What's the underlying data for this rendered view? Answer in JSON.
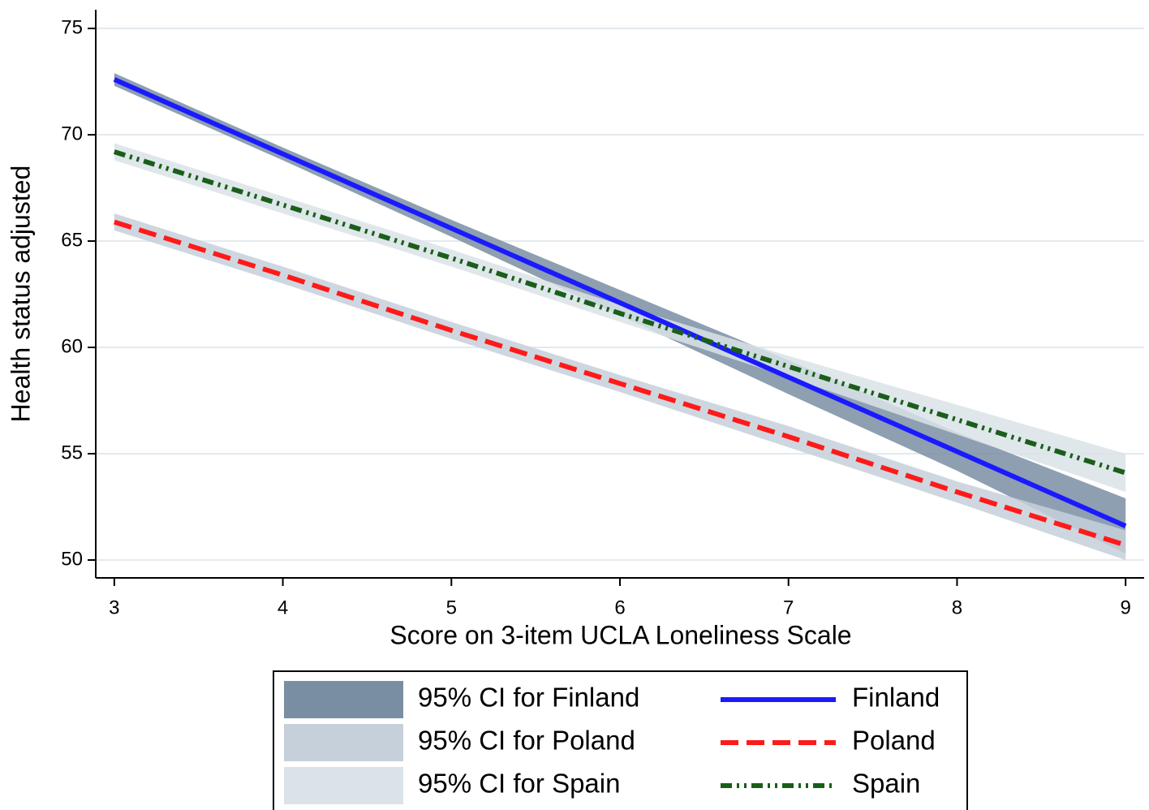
{
  "chart_data": {
    "type": "line",
    "x_label": "Score on 3-item UCLA Loneliness Scale",
    "y_label": "Health status adjusted",
    "x": [
      3,
      4,
      5,
      6,
      7,
      8,
      9
    ],
    "xlim": [
      2.89,
      9.11
    ],
    "xticks": [
      3,
      4,
      5,
      6,
      7,
      8,
      9
    ],
    "ylim": [
      49.16,
      75.88
    ],
    "yticks": [
      50,
      55,
      60,
      65,
      70,
      75
    ],
    "grid": true,
    "legend": "bottom",
    "bands": [
      {
        "name": "95% CI for Finland",
        "color": "#7a8ea3",
        "lower": [
          72.3,
          68.8,
          65.2,
          61.5,
          57.8,
          54.2,
          50.3
        ],
        "upper": [
          72.9,
          69.4,
          66.0,
          62.7,
          59.4,
          56.0,
          52.9
        ]
      },
      {
        "name": "95% CI for Poland",
        "color": "#c6d0da",
        "lower": [
          65.5,
          63.0,
          60.4,
          57.9,
          55.3,
          52.7,
          50.0
        ],
        "upper": [
          66.3,
          63.8,
          61.2,
          58.7,
          56.3,
          53.7,
          51.4
        ]
      },
      {
        "name": "95% CI for Spain",
        "color": "#d9e3e8",
        "lower": [
          68.8,
          66.3,
          63.8,
          61.2,
          58.6,
          55.9,
          53.2
        ],
        "upper": [
          69.6,
          67.1,
          64.6,
          62.0,
          59.6,
          57.3,
          55.0
        ]
      }
    ],
    "series": [
      {
        "name": "Finland",
        "color": "#1a1aff",
        "dash": "solid",
        "values": [
          72.6,
          69.1,
          65.6,
          62.1,
          58.6,
          55.1,
          51.6
        ]
      },
      {
        "name": "Poland",
        "color": "#ff1a1a",
        "dash": "dash",
        "values": [
          65.9,
          63.4,
          60.8,
          58.3,
          55.8,
          53.2,
          50.7
        ]
      },
      {
        "name": "Spain",
        "color": "#1a5e1a",
        "dash": "dash-dot",
        "values": [
          69.2,
          66.7,
          64.2,
          61.6,
          59.1,
          56.6,
          54.1
        ]
      }
    ]
  }
}
